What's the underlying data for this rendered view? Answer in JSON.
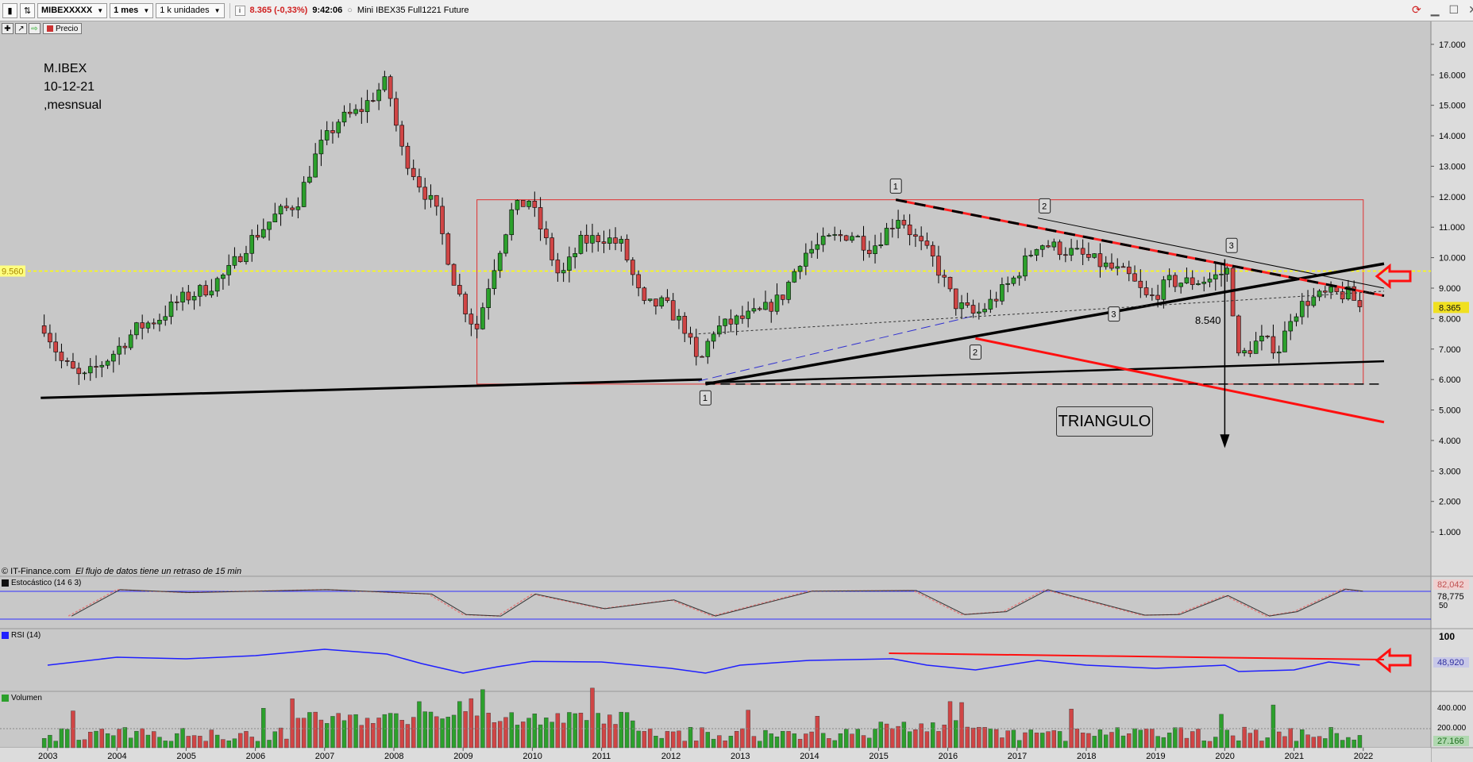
{
  "toolbar": {
    "symbol": "MIBEXXXXX",
    "period": "1 mes",
    "units": "1 k unidades",
    "price": "8.365",
    "change": "(-0,33%)",
    "time": "9:42:06",
    "instrument": "Mini IBEX35 Full1221 Future",
    "price_button": "Precio"
  },
  "annotation": {
    "line1": "M.IBEX",
    "line2": "10-12-21",
    "line3": ",mesnsual"
  },
  "triangle_label": "TRIANGULO",
  "credits": {
    "source": "© IT-Finance.com",
    "delay": "El flujo de datos tiene un retraso de 15 min"
  },
  "chart_data": [
    {
      "type": "candlestick",
      "title": "MIBEXXXXX 1 mes",
      "x_years": [
        "2003",
        "2004",
        "2005",
        "2006",
        "2007",
        "2008",
        "2009",
        "2010",
        "2011",
        "2012",
        "2013",
        "2014",
        "2015",
        "2016",
        "2017",
        "2018",
        "2019",
        "2020",
        "2021",
        "2022"
      ],
      "y_ticks": [
        "17.000",
        "16.000",
        "15.000",
        "14.000",
        "13.000",
        "12.000",
        "11.000",
        "10.000",
        "9.000",
        "8.000",
        "7.000",
        "6.000",
        "5.000",
        "4.000",
        "3.000",
        "2.000",
        "1.000"
      ],
      "ylim": [
        0,
        17700
      ],
      "last_price_label": "8.365",
      "level_label": "9.560",
      "level_value": 9560,
      "point_label": "8.540",
      "wave_labels": [
        "1",
        "2",
        "3",
        "1",
        "2",
        "3"
      ],
      "close_path": [
        [
          2002.9,
          8000
        ],
        [
          2003.2,
          6600
        ],
        [
          2003.5,
          6000
        ],
        [
          2003.9,
          6750
        ],
        [
          2004.3,
          7700
        ],
        [
          2004.6,
          8000
        ],
        [
          2004.9,
          8600
        ],
        [
          2005.3,
          9000
        ],
        [
          2005.6,
          9500
        ],
        [
          2005.9,
          10500
        ],
        [
          2006.3,
          11400
        ],
        [
          2006.6,
          11800
        ],
        [
          2006.9,
          13500
        ],
        [
          2007.2,
          14500
        ],
        [
          2007.5,
          14800
        ],
        [
          2007.9,
          15800
        ],
        [
          2008.1,
          13600
        ],
        [
          2008.4,
          12300
        ],
        [
          2008.6,
          11600
        ],
        [
          2008.9,
          9000
        ],
        [
          2009.1,
          8000
        ],
        [
          2009.2,
          7700
        ],
        [
          2009.4,
          9400
        ],
        [
          2009.7,
          11500
        ],
        [
          2009.95,
          11900
        ],
        [
          2010.2,
          10500
        ],
        [
          2010.4,
          9300
        ],
        [
          2010.7,
          10500
        ],
        [
          2011.0,
          10700
        ],
        [
          2011.3,
          10400
        ],
        [
          2011.6,
          8400
        ],
        [
          2011.9,
          8500
        ],
        [
          2012.2,
          7700
        ],
        [
          2012.4,
          6400
        ],
        [
          2012.6,
          7600
        ],
        [
          2012.9,
          7900
        ],
        [
          2013.3,
          8200
        ],
        [
          2013.6,
          8700
        ],
        [
          2013.9,
          10100
        ],
        [
          2014.3,
          10600
        ],
        [
          2014.6,
          10800
        ],
        [
          2014.9,
          10300
        ],
        [
          2015.3,
          11400
        ],
        [
          2015.5,
          10700
        ],
        [
          2015.8,
          9900
        ],
        [
          2016.1,
          8500
        ],
        [
          2016.4,
          8100
        ],
        [
          2016.7,
          8700
        ],
        [
          2016.95,
          9300
        ],
        [
          2017.3,
          10500
        ],
        [
          2017.6,
          10300
        ],
        [
          2017.9,
          10100
        ],
        [
          2018.3,
          9700
        ],
        [
          2018.6,
          9400
        ],
        [
          2018.9,
          8600
        ],
        [
          2019.2,
          9200
        ],
        [
          2019.5,
          9200
        ],
        [
          2019.8,
          9300
        ],
        [
          2020.05,
          9600
        ],
        [
          2020.2,
          6700
        ],
        [
          2020.5,
          7300
        ],
        [
          2020.8,
          7000
        ],
        [
          2020.95,
          8100
        ],
        [
          2021.2,
          8600
        ],
        [
          2021.5,
          8800
        ],
        [
          2021.8,
          8800
        ],
        [
          2021.95,
          8365
        ]
      ]
    },
    {
      "type": "line",
      "title": "Estocástico (14 6 3)",
      "y_ticks": [
        "50"
      ],
      "value_labels": [
        "82,042",
        "78,775"
      ]
    },
    {
      "type": "line",
      "title": "RSI (14)",
      "y_ticks": [
        "100"
      ],
      "value_labels": [
        "48,920"
      ]
    },
    {
      "type": "bar",
      "title": "Volumen",
      "y_ticks": [
        "400.000",
        "200.000"
      ],
      "value_labels": [
        "27.166"
      ]
    }
  ],
  "colors": {
    "up_candle": "#2ca02c",
    "down_candle": "#d04545",
    "trendline_black": "#000000",
    "trendline_red": "#ff0000",
    "level_yellow": "#ffff00",
    "rsi": "#1f1fff",
    "background": "#c8c8c8"
  }
}
